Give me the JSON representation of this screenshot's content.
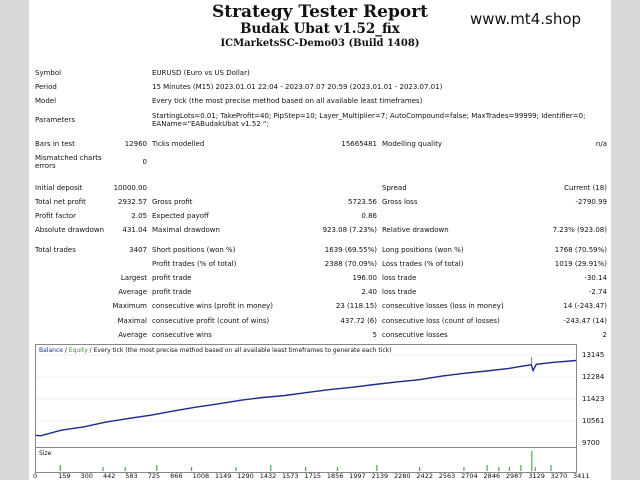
{
  "report": {
    "title": "Strategy Tester Report",
    "subtitle": "Budak Ubat v1.52_fix",
    "server": "ICMarketsSC-Demo03 (Build 1408)",
    "brand": "www.mt4.shop"
  },
  "header_rows": [
    {
      "label": "Symbol",
      "value": "EURUSD (Euro vs US Dollar)"
    },
    {
      "label": "Period",
      "value": "15 Minutes (M15) 2023.01.01 22:04 - 2023.07.07 20:59 (2023.01.01 - 2023.07.01)"
    },
    {
      "label": "Model",
      "value": "Every tick (the most precise method based on all available least timeframes)"
    },
    {
      "label": "Parameters",
      "value": "StartingLots=0.01; TakeProfit=40; PipStep=10; Layer_Multiplier=7; AutoCompound=false; MaxTrades=99999; Identifier=0; EAName=\"EABudakUbat v1.52 \";"
    }
  ],
  "bars": {
    "bars_label": "Bars in test",
    "bars_value": "12960",
    "ticks_label": "Ticks modelled",
    "ticks_value": "15665481",
    "quality_label": "Modelling quality",
    "quality_value": "n/a",
    "mismatch_label": "Mismatched charts errors",
    "mismatch_value": "0"
  },
  "stats": {
    "initial_deposit_label": "Initial deposit",
    "initial_deposit": "10000.00",
    "spread_label": "Spread",
    "spread": "Current (18)",
    "net_profit_label": "Total net profit",
    "net_profit": "2932.57",
    "gross_profit_label": "Gross profit",
    "gross_profit": "5723.56",
    "gross_loss_label": "Gross loss",
    "gross_loss": "-2790.99",
    "profit_factor_label": "Profit factor",
    "profit_factor": "2.05",
    "expected_payoff_label": "Expected payoff",
    "expected_payoff": "0.86",
    "abs_dd_label": "Absolute drawdown",
    "abs_dd": "431.04",
    "max_dd_label": "Maximal drawdown",
    "max_dd": "923.08 (7.23%)",
    "rel_dd_label": "Relative drawdown",
    "rel_dd": "7.23% (923.08)",
    "total_trades_label": "Total trades",
    "total_trades": "3407",
    "short_label": "Short positions (won %)",
    "short": "1639 (69.55%)",
    "long_label": "Long positions (won %)",
    "long": "1768 (70.59%)",
    "profit_trades_label": "Profit trades (% of total)",
    "profit_trades": "2388 (70.09%)",
    "loss_trades_label": "Loss trades (% of total)",
    "loss_trades": "1019 (29.91%)",
    "largest_label": "Largest",
    "largest_profit_label": "profit trade",
    "largest_profit": "196.00",
    "largest_loss_label": "loss trade",
    "largest_loss": "-30.14",
    "average_label": "Average",
    "average_profit_label": "profit trade",
    "average_profit": "2.40",
    "average_loss_label": "loss trade",
    "average_loss": "-2.74",
    "maximum_label": "Maximum",
    "max_cons_wins_label": "consecutive wins (profit in money)",
    "max_cons_wins": "23 (118.15)",
    "max_cons_losses_label": "consecutive losses (loss in money)",
    "max_cons_losses": "14 (-243.47)",
    "maximal_label": "Maximal",
    "maximal_profit_label": "consecutive profit (count of wins)",
    "maximal_profit": "437.72 (6)",
    "maximal_loss_label": "consecutive loss (count of losses)",
    "maximal_loss": "-243.47 (14)",
    "average2_label": "Average",
    "avg_cons_wins_label": "consecutive wins",
    "avg_cons_wins": "5",
    "avg_cons_losses_label": "consecutive losses",
    "avg_cons_losses": "2"
  },
  "chart_legend": {
    "balance": "Balance",
    "sep": " / ",
    "equity": "Equity",
    "rest": " / Every tick (the most precise method based on all available least timeframes to generate each tick)"
  },
  "size_label": "Size",
  "colors": {
    "balance": "#1a2a8a",
    "equity": "#2a9a2a",
    "size_bars": "#2a9a2a"
  },
  "chart_data": {
    "type": "line",
    "ylim": [
      9700,
      13145
    ],
    "xlim": [
      0,
      3411
    ],
    "y_ticks": [
      13145,
      12284,
      11423,
      10561,
      9700
    ],
    "x_ticks": [
      0,
      159,
      300,
      442,
      583,
      725,
      866,
      1008,
      1149,
      1290,
      1432,
      1573,
      1715,
      1856,
      1997,
      2139,
      2280,
      2422,
      2563,
      2704,
      2846,
      2987,
      3129,
      3270,
      3411
    ],
    "series": [
      {
        "name": "Balance",
        "x": [
          0,
          30,
          159,
          300,
          442,
          583,
          725,
          866,
          1008,
          1149,
          1290,
          1432,
          1573,
          1715,
          1856,
          1997,
          2139,
          2280,
          2422,
          2563,
          2704,
          2846,
          2987,
          3060,
          3129,
          3140,
          3160,
          3270,
          3411
        ],
        "values": [
          10000,
          9980,
          10200,
          10330,
          10520,
          10660,
          10790,
          10950,
          11100,
          11230,
          11370,
          11480,
          11560,
          11680,
          11790,
          11880,
          11990,
          12090,
          12180,
          12320,
          12430,
          12520,
          12620,
          12700,
          12760,
          12540,
          12780,
          12860,
          12930
        ]
      }
    ]
  }
}
